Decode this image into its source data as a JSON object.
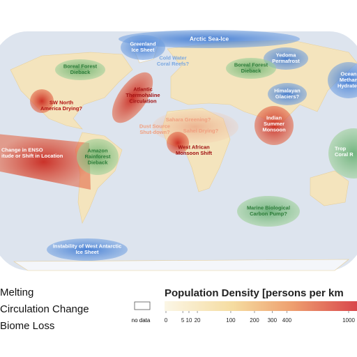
{
  "map": {
    "tipping_elements": [
      {
        "lines": [
          "Arctic Sea-Ice"
        ]
      },
      {
        "lines": [
          "Greenland",
          "Ice Sheet"
        ]
      },
      {
        "lines": [
          "Cold Water",
          "Coral Reefs?"
        ]
      },
      {
        "lines": [
          "Yedoma",
          "Permafrost"
        ]
      },
      {
        "lines": [
          "Boreal Forest",
          "Dieback"
        ]
      },
      {
        "lines": [
          "Boreal Forest",
          "Dieback"
        ]
      },
      {
        "lines": [
          "Ocean",
          "Methan",
          "Hydrates"
        ]
      },
      {
        "lines": [
          "SW North",
          "America Drying?"
        ]
      },
      {
        "lines": [
          "Atlantic",
          "Thermohaline",
          "Circulation"
        ]
      },
      {
        "lines": [
          "Himalayan",
          "Glaciers?"
        ]
      },
      {
        "lines": [
          "Indian",
          "Summer",
          "Monsoon"
        ]
      },
      {
        "lines": [
          "Sahara Greening?"
        ]
      },
      {
        "lines": [
          "Dust Source",
          "Shut-down?"
        ]
      },
      {
        "lines": [
          "Sahel Drying?"
        ]
      },
      {
        "lines": [
          "West African",
          "Monsoon Shift"
        ]
      },
      {
        "lines": [
          "Change in ENSO",
          "itude or Shift in Location"
        ]
      },
      {
        "lines": [
          "Amazon",
          "Rainforest",
          "Dieback"
        ]
      },
      {
        "lines": [
          "Trop",
          "Coral R"
        ]
      },
      {
        "lines": [
          "Marine Biological",
          "Carbon Pump?"
        ]
      },
      {
        "lines": [
          "Instability of West Antarctic",
          "Ice Sheet"
        ]
      }
    ]
  },
  "legend": {
    "items": [
      "Melting",
      "Circulation Change",
      "Biome Loss"
    ],
    "no_data": "no data"
  },
  "colorbar": {
    "title": "Population Density [persons per km",
    "ticks": [
      0,
      5,
      10,
      20,
      100,
      200,
      300,
      400,
      1000
    ]
  }
}
